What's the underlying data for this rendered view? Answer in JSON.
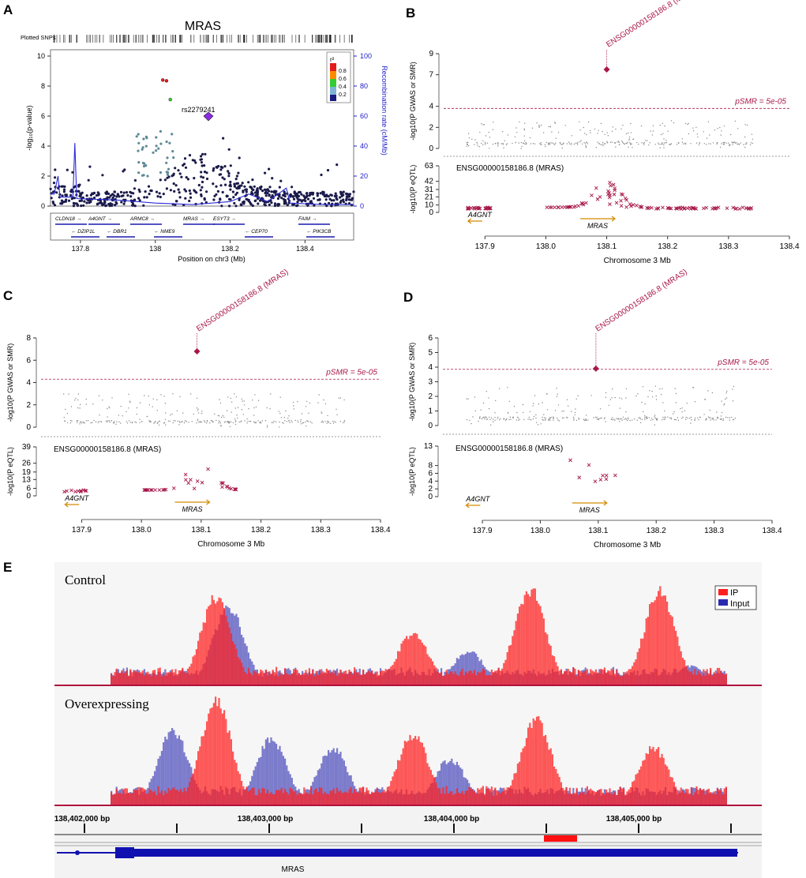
{
  "panels": {
    "A": {
      "letter": "A",
      "title": "MRAS",
      "plotted_snps": "Plotted SNPs",
      "ylabel": "-log₁₀(p-value)",
      "ylabel2": "Recombination rate (cM/Mb)",
      "xlabel": "Position on chr3 (Mb)",
      "lead_snp": "rs2279241",
      "legend_title": "r²",
      "legend_labels": [
        "0.8",
        "0.6",
        "0.4",
        "0.2"
      ],
      "legend_colors": [
        "#e31a1c",
        "#ff8c00",
        "#33cc33",
        "#7fb3d5",
        "#1a1a80"
      ],
      "genes_row1": [
        "CLDN18",
        "A4GNT",
        "ARMC8",
        "MRAS",
        "ESYT3",
        "FAIM"
      ],
      "genes_row2": [
        "DZIP1L",
        "DBR1",
        "NME9",
        "CEP70",
        "PIK3CB"
      ]
    },
    "B": {
      "letter": "B"
    },
    "C": {
      "letter": "C"
    },
    "D": {
      "letter": "D"
    },
    "E": {
      "letter": "E",
      "track1": "Control",
      "track2": "Overexpressing",
      "legend_ip": "IP",
      "legend_input": "Input",
      "gene": "MRAS",
      "ip_color": "#ff2020",
      "input_color": "#2a2ab0"
    }
  },
  "smr": {
    "probe_label": "ENSG00000158186.8 (MRAS)",
    "probe_id": "ENSG00000158186.8",
    "probe_gene": "MRAS",
    "threshold_label": "pSMR = 5e-05",
    "ylabel_top": "-log10(P GWAS or SMR)",
    "ylabel_bottom": "-log10(P eQTL)",
    "xlabel": "Chromosome 3 Mb",
    "gene_left": "A4GNT",
    "gene_main": "MRAS",
    "accent": "#a8174a"
  },
  "chart_data": [
    {
      "panel": "A",
      "type": "scatter",
      "title": "MRAS",
      "xlabel": "Position on chr3 (Mb)",
      "ylabel": "-log10(p-value)",
      "y2label": "Recombination rate (cM/Mb)",
      "xlim": [
        137.72,
        138.53
      ],
      "ylim": [
        0,
        10
      ],
      "y2lim": [
        0,
        100
      ],
      "xticks": [
        137.8,
        138,
        138.2,
        138.4
      ],
      "yticks": [
        0,
        2,
        4,
        6,
        8,
        10
      ],
      "y2ticks": [
        0,
        20,
        40,
        60,
        80,
        100
      ],
      "lead_snp": {
        "name": "rs2279241",
        "x": 138.12,
        "y": 5.9
      },
      "highlights": [
        {
          "x": 138.02,
          "y": 8.4
        },
        {
          "x": 138.03,
          "y": 8.35
        },
        {
          "x": 138.04,
          "y": 7.1
        }
      ]
    },
    {
      "panel": "B",
      "type": "scatter",
      "xlabel": "Chromosome 3 Mb",
      "xlim": [
        137.84,
        138.4
      ],
      "xticks": [
        137.9,
        138.0,
        138.1,
        138.2,
        138.3,
        138.4
      ],
      "top": {
        "ylim": [
          0,
          9
        ],
        "yticks": [
          0,
          2,
          4,
          7,
          9
        ],
        "threshold": 3.8,
        "smr_point": {
          "x": 138.1,
          "y": 7.5
        }
      },
      "bottom": {
        "ylim": [
          0,
          63
        ],
        "yticks": [
          0,
          10,
          21,
          31,
          42,
          63
        ],
        "eqtl_peak": 46
      }
    },
    {
      "panel": "C",
      "type": "scatter",
      "xlabel": "Chromosome 3 Mb",
      "xlim": [
        137.84,
        138.4
      ],
      "xticks": [
        137.9,
        138.0,
        138.1,
        138.2,
        138.3,
        138.4
      ],
      "top": {
        "ylim": [
          0,
          8
        ],
        "yticks": [
          0,
          2,
          4,
          6,
          8
        ],
        "threshold": 4.3,
        "smr_point": {
          "x": 138.093,
          "y": 6.8
        }
      },
      "bottom": {
        "ylim": [
          0,
          39
        ],
        "yticks": [
          0,
          6,
          13,
          19,
          26,
          39
        ],
        "eqtl_peak": 31
      }
    },
    {
      "panel": "D",
      "type": "scatter",
      "xlabel": "Chromosome 3 Mb",
      "xlim": [
        137.84,
        138.4
      ],
      "xticks": [
        137.9,
        138.0,
        138.1,
        138.2,
        138.3,
        138.4
      ],
      "top": {
        "ylim": [
          0,
          6
        ],
        "yticks": [
          0,
          1,
          2,
          3,
          4,
          5,
          6
        ],
        "threshold": 3.85,
        "smr_point": {
          "x": 138.096,
          "y": 3.9
        }
      },
      "bottom": {
        "ylim": [
          0,
          13
        ],
        "yticks": [
          0,
          2,
          4,
          6,
          8,
          13
        ],
        "eqtl_peak": 9.5
      }
    },
    {
      "panel": "E",
      "type": "area",
      "xlabel": "",
      "xticks": [
        "138,402,000 bp",
        "138,403,000 bp",
        "138,404,000 bp",
        "138,405,000 bp"
      ],
      "series": [
        {
          "name": "IP",
          "track": "Control",
          "peaks": [
            {
              "x": 0.17,
              "h": 0.92
            },
            {
              "x": 0.49,
              "h": 0.55
            },
            {
              "x": 0.68,
              "h": 1.0
            },
            {
              "x": 0.89,
              "h": 0.97
            }
          ]
        },
        {
          "name": "Input",
          "track": "Control",
          "peaks": [
            {
              "x": 0.19,
              "h": 0.82
            },
            {
              "x": 0.58,
              "h": 0.36
            },
            {
              "x": 0.94,
              "h": 0.2
            }
          ]
        },
        {
          "name": "IP",
          "track": "Overexpressing",
          "peaks": [
            {
              "x": 0.17,
              "h": 1.0
            },
            {
              "x": 0.49,
              "h": 0.68
            },
            {
              "x": 0.69,
              "h": 0.82
            },
            {
              "x": 0.88,
              "h": 0.56
            }
          ]
        },
        {
          "name": "Input",
          "track": "Overexpressing",
          "peaks": [
            {
              "x": 0.1,
              "h": 0.72
            },
            {
              "x": 0.26,
              "h": 0.65
            },
            {
              "x": 0.36,
              "h": 0.55
            },
            {
              "x": 0.55,
              "h": 0.45
            }
          ]
        }
      ]
    }
  ]
}
